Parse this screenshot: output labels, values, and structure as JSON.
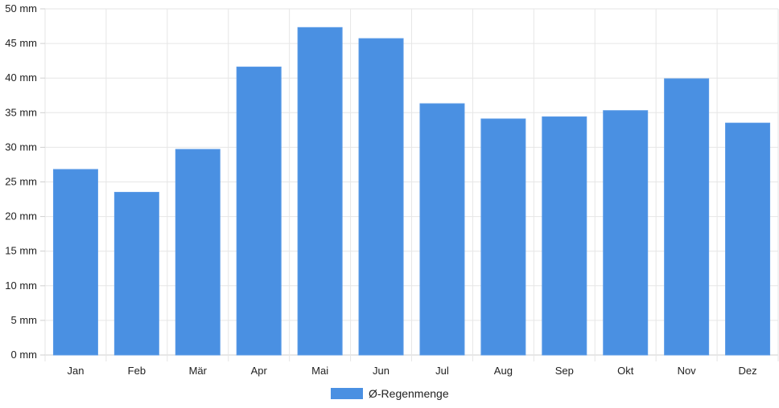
{
  "chart_data": {
    "type": "bar",
    "categories": [
      "Jan",
      "Feb",
      "Mär",
      "Apr",
      "Mai",
      "Jun",
      "Jul",
      "Aug",
      "Sep",
      "Okt",
      "Nov",
      "Dez"
    ],
    "series": [
      {
        "name": "Ø-Regenmenge",
        "color": "#4a90e2",
        "values": [
          26.8,
          23.5,
          29.7,
          41.6,
          47.3,
          45.7,
          36.3,
          34.1,
          34.4,
          35.3,
          39.9,
          33.5
        ]
      }
    ],
    "y_ticks": [
      "0 mm",
      "5 mm",
      "10 mm",
      "15 mm",
      "20 mm",
      "25 mm",
      "30 mm",
      "35 mm",
      "40 mm",
      "45 mm",
      "50 mm"
    ],
    "ylim": [
      0,
      50
    ],
    "grid": true,
    "legend_position": "bottom-center"
  }
}
